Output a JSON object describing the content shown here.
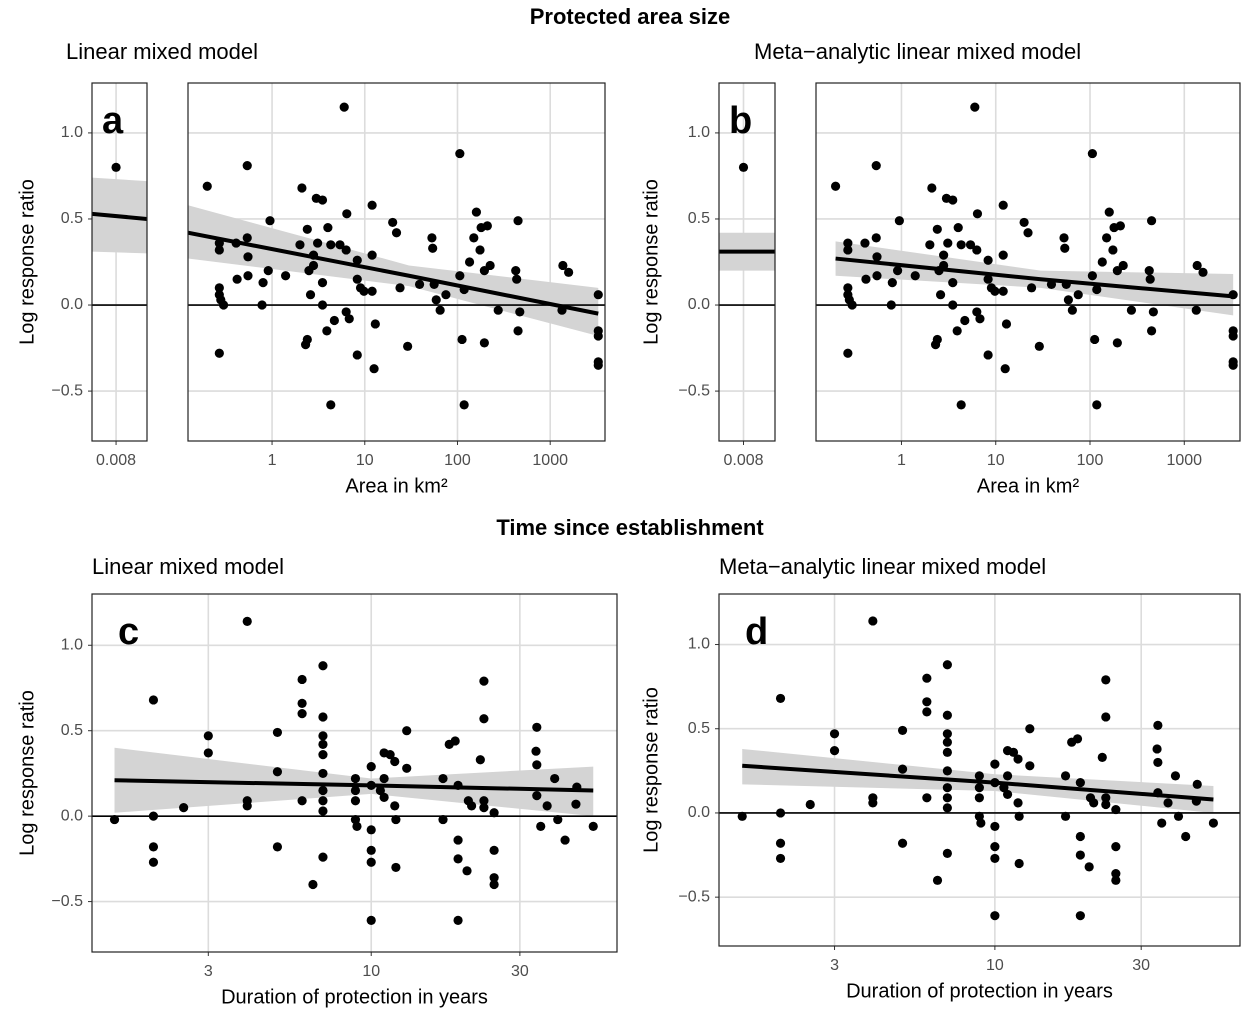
{
  "sections": [
    {
      "title": "Protected area size"
    },
    {
      "title": "Time since establishment"
    }
  ],
  "chart_data": [
    {
      "type": "scatter",
      "title": "Linear mixed model",
      "panel_label": "a",
      "ylabel": "Log response ratio",
      "color": "#000000",
      "grid": true,
      "x": [
        0.008
      ],
      "values": [
        0.8
      ],
      "xlim": [
        0.0073,
        0.0089
      ],
      "ylim": [
        -0.79,
        1.29
      ],
      "xticks": [
        0.008
      ],
      "yticks": [
        {
          "value": -0.5,
          "label": "−0.5"
        },
        {
          "value": 0,
          "label": "0.0"
        },
        0.5,
        {
          "value": 1,
          "label": "1.0"
        }
      ],
      "hline": 0,
      "fit": {
        "x": [
          0.0073,
          0.0089
        ],
        "values": [
          0.53,
          0.5
        ],
        "lower": [
          0.31,
          0.3
        ],
        "upper": [
          0.74,
          0.72
        ]
      }
    },
    {
      "type": "scatter",
      "xlabel": "Area in km²",
      "xlog": true,
      "color": "#000000",
      "grid": true,
      "x": [
        0.2,
        0.27,
        0.27,
        0.27,
        0.27,
        0.28,
        0.3,
        0.27,
        0.41,
        0.42,
        0.54,
        0.54,
        0.55,
        0.55,
        0.78,
        0.8,
        0.95,
        0.91,
        1.4,
        2,
        2.1,
        2.4,
        2.5,
        2.6,
        2.3,
        2.4,
        2.8,
        2.8,
        3,
        3.1,
        3.5,
        3.5,
        3.5,
        4,
        4.3,
        4.3,
        3.9,
        4.7,
        5.4,
        6,
        6.3,
        6.3,
        6.8,
        6.4,
        8.3,
        8.3,
        8.3,
        9,
        9.8,
        12,
        12,
        12,
        13,
        12.6,
        20,
        22,
        24,
        29,
        39,
        53,
        54,
        56,
        59,
        65,
        75,
        106,
        106,
        112,
        118,
        118,
        135,
        150,
        160,
        175,
        180,
        195,
        195,
        210,
        225,
        275,
        425,
        435,
        450,
        450,
        470,
        1370,
        1580,
        1340,
        3300,
        3300,
        3300,
        3300,
        3300
      ],
      "values": [
        0.69,
        0.36,
        0.32,
        0.1,
        0.06,
        0.03,
        0,
        -0.28,
        0.36,
        0.15,
        0.39,
        0.81,
        0.28,
        0.17,
        0,
        0.13,
        0.49,
        0.2,
        0.17,
        0.35,
        0.68,
        0.44,
        0.2,
        0.06,
        -0.23,
        -0.2,
        0.23,
        0.29,
        0.62,
        0.36,
        0.61,
        0.13,
        0,
        0.45,
        0.35,
        -0.58,
        -0.15,
        -0.09,
        0.35,
        1.15,
        0.32,
        -0.04,
        -0.08,
        0.53,
        0.26,
        -0.29,
        0.15,
        0.1,
        0.08,
        0.58,
        0.29,
        0.08,
        -0.11,
        -0.37,
        0.48,
        0.42,
        0.1,
        -0.24,
        0.12,
        0.39,
        0.33,
        0.12,
        0.03,
        -0.03,
        0.06,
        0.88,
        0.17,
        -0.2,
        0.09,
        -0.58,
        0.25,
        0.39,
        0.54,
        0.32,
        0.45,
        0.2,
        -0.22,
        0.46,
        0.23,
        -0.03,
        0.2,
        0.15,
        0.49,
        -0.15,
        -0.04,
        0.23,
        0.19,
        -0.03,
        0.06,
        -0.15,
        -0.18,
        -0.33,
        -0.35
      ],
      "xlim": [
        0.124,
        3900
      ],
      "ylim": [
        -0.79,
        1.29
      ],
      "xticks": [
        1,
        10,
        100,
        1000
      ],
      "hline": 0,
      "fit": {
        "x": [
          0.124,
          30,
          3300
        ],
        "values": [
          0.42,
          0.17,
          -0.05
        ],
        "lower": [
          0.27,
          0.11,
          -0.18
        ],
        "upper": [
          0.58,
          0.23,
          0.1
        ]
      }
    },
    {
      "type": "scatter",
      "title": "Meta−analytic linear mixed model",
      "panel_label": "b",
      "ylabel": "Log response ratio",
      "color": "#000000",
      "grid": true,
      "x": [
        0.008
      ],
      "values": [
        0.8
      ],
      "xlim": [
        0.0073,
        0.0089
      ],
      "ylim": [
        -0.79,
        1.29
      ],
      "xticks": [
        0.008
      ],
      "yticks": [
        {
          "value": -0.5,
          "label": "−0.5"
        },
        {
          "value": 0,
          "label": "0.0"
        },
        0.5,
        {
          "value": 1,
          "label": "1.0"
        }
      ],
      "hline": 0,
      "fit": {
        "x": [
          0.0073,
          0.0089
        ],
        "values": [
          0.31,
          0.31
        ],
        "lower": [
          0.2,
          0.2
        ],
        "upper": [
          0.42,
          0.42
        ]
      }
    },
    {
      "type": "scatter",
      "xlabel": "Area in km²",
      "xlog": true,
      "color": "#000000",
      "grid": true,
      "x": [
        0.2,
        0.27,
        0.27,
        0.27,
        0.27,
        0.28,
        0.3,
        0.27,
        0.41,
        0.42,
        0.54,
        0.54,
        0.55,
        0.55,
        0.78,
        0.8,
        0.95,
        0.91,
        1.4,
        2,
        2.1,
        2.4,
        2.5,
        2.6,
        2.3,
        2.4,
        2.8,
        2.8,
        3,
        3.1,
        3.5,
        3.5,
        3.5,
        4,
        4.3,
        4.3,
        3.9,
        4.7,
        5.4,
        6,
        6.3,
        6.3,
        6.8,
        6.4,
        8.3,
        8.3,
        8.3,
        9,
        9.8,
        12,
        12,
        12,
        13,
        12.6,
        20,
        22,
        24,
        29,
        39,
        53,
        54,
        56,
        59,
        65,
        75,
        106,
        106,
        112,
        118,
        118,
        135,
        150,
        160,
        175,
        180,
        195,
        195,
        210,
        225,
        275,
        425,
        435,
        450,
        450,
        470,
        1370,
        1580,
        1340,
        3300,
        3300,
        3300,
        3300,
        3300
      ],
      "values": [
        0.69,
        0.36,
        0.32,
        0.1,
        0.06,
        0.03,
        0,
        -0.28,
        0.36,
        0.15,
        0.39,
        0.81,
        0.28,
        0.17,
        0,
        0.13,
        0.49,
        0.2,
        0.17,
        0.35,
        0.68,
        0.44,
        0.2,
        0.06,
        -0.23,
        -0.2,
        0.23,
        0.29,
        0.62,
        0.36,
        0.61,
        0.13,
        0,
        0.45,
        0.35,
        -0.58,
        -0.15,
        -0.09,
        0.35,
        1.15,
        0.32,
        -0.04,
        -0.08,
        0.53,
        0.26,
        -0.29,
        0.15,
        0.1,
        0.08,
        0.58,
        0.29,
        0.08,
        -0.11,
        -0.37,
        0.48,
        0.42,
        0.1,
        -0.24,
        0.12,
        0.39,
        0.33,
        0.12,
        0.03,
        -0.03,
        0.06,
        0.88,
        0.17,
        -0.2,
        0.09,
        -0.58,
        0.25,
        0.39,
        0.54,
        0.32,
        0.45,
        0.2,
        -0.22,
        0.46,
        0.23,
        -0.03,
        0.2,
        0.15,
        0.49,
        -0.15,
        -0.04,
        0.23,
        0.19,
        -0.03,
        0.06,
        -0.15,
        -0.18,
        -0.33,
        -0.35
      ],
      "xlim": [
        0.124,
        3900
      ],
      "ylim": [
        -0.79,
        1.29
      ],
      "xticks": [
        1,
        10,
        100,
        1000
      ],
      "hline": 0,
      "fit": {
        "x": [
          0.2,
          30,
          3300
        ],
        "values": [
          0.27,
          0.15,
          0.05
        ],
        "lower": [
          0.17,
          0.1,
          -0.06
        ],
        "upper": [
          0.37,
          0.2,
          0.18
        ]
      }
    },
    {
      "type": "scatter",
      "title": "Linear mixed model",
      "panel_label": "c",
      "ylabel": "Log response ratio",
      "xlabel": "Duration of protection in years",
      "xlog": true,
      "color": "#000000",
      "grid": true,
      "x": [
        1.5,
        2,
        2,
        2,
        2,
        2.5,
        3,
        3,
        4,
        4,
        4,
        5,
        5,
        5,
        6,
        6,
        6,
        6,
        6.5,
        7,
        7,
        7,
        7,
        7,
        7,
        7,
        7,
        7,
        7,
        8.9,
        8.9,
        8.9,
        8.9,
        9,
        10,
        10,
        10,
        10,
        10,
        10,
        10.7,
        11,
        11,
        11,
        11.5,
        11.9,
        11.9,
        12,
        12,
        13,
        13,
        17,
        17,
        17.8,
        18.6,
        19,
        19,
        19,
        19,
        20.3,
        20.5,
        21,
        22.4,
        23,
        23,
        23,
        23,
        24.8,
        24.8,
        24.8,
        24.8,
        34,
        33.8,
        34,
        34,
        35,
        36.7,
        38.8,
        39.7,
        41.9,
        45.4,
        45.7,
        51.6
      ],
      "values": [
        -0.02,
        0.68,
        0,
        -0.18,
        -0.27,
        0.05,
        0.47,
        0.37,
        1.14,
        0.09,
        0.06,
        0.49,
        0.26,
        -0.18,
        0.8,
        0.66,
        0.6,
        0.09,
        -0.4,
        0.88,
        0.58,
        0.47,
        0.42,
        0.36,
        0.25,
        0.09,
        0.03,
        -0.24,
        0.15,
        0.22,
        0.15,
        0.09,
        -0.02,
        -0.06,
        0.29,
        0.18,
        -0.08,
        -0.2,
        -0.27,
        -0.61,
        0.15,
        0.22,
        0.37,
        0.11,
        0.36,
        0.32,
        0.06,
        -0.02,
        -0.3,
        0.5,
        0.28,
        0.22,
        -0.02,
        0.42,
        0.44,
        0.18,
        -0.14,
        -0.25,
        -0.61,
        -0.32,
        0.09,
        0.06,
        0.33,
        0.79,
        0.57,
        0.09,
        0.05,
        -0.2,
        -0.36,
        -0.4,
        0.02,
        0.52,
        0.38,
        0.3,
        0.12,
        -0.06,
        0.06,
        0.22,
        -0.02,
        -0.14,
        0.07,
        0.17,
        -0.06
      ],
      "xlim": [
        1.27,
        61.5
      ],
      "ylim": [
        -0.795,
        1.3
      ],
      "xticks": [
        3,
        10,
        30
      ],
      "yticks": [
        {
          "value": -0.5,
          "label": "−0.5"
        },
        {
          "value": 0,
          "label": "0.0"
        },
        0.5,
        {
          "value": 1,
          "label": "1.0"
        }
      ],
      "hline": 0,
      "fit": {
        "x": [
          1.5,
          10,
          51.6
        ],
        "values": [
          0.21,
          0.18,
          0.15
        ],
        "lower": [
          0.02,
          0.13,
          0
        ],
        "upper": [
          0.4,
          0.22,
          0.29
        ]
      }
    },
    {
      "type": "scatter",
      "title": "Meta−analytic linear mixed model",
      "panel_label": "d",
      "ylabel": "Log response ratio",
      "xlabel": "Duration of protection in years",
      "xlog": true,
      "color": "#000000",
      "grid": true,
      "x": [
        1.5,
        2,
        2,
        2,
        2,
        2.5,
        3,
        3,
        4,
        4,
        4,
        5,
        5,
        5,
        6,
        6,
        6,
        6,
        6.5,
        7,
        7,
        7,
        7,
        7,
        7,
        7,
        7,
        7,
        7,
        8.9,
        8.9,
        8.9,
        8.9,
        9,
        10,
        10,
        10,
        10,
        10,
        10,
        10.7,
        11,
        11,
        11,
        11.5,
        11.9,
        11.9,
        12,
        12,
        13,
        13,
        17,
        17,
        17.8,
        18.6,
        19,
        19,
        19,
        19,
        20.3,
        20.5,
        21,
        22.4,
        23,
        23,
        23,
        23,
        24.8,
        24.8,
        24.8,
        24.8,
        34,
        33.8,
        34,
        34,
        35,
        36.7,
        38.8,
        39.7,
        41.9,
        45.4,
        45.7,
        51.6
      ],
      "values": [
        -0.02,
        0.68,
        0,
        -0.18,
        -0.27,
        0.05,
        0.47,
        0.37,
        1.14,
        0.09,
        0.06,
        0.49,
        0.26,
        -0.18,
        0.8,
        0.66,
        0.6,
        0.09,
        -0.4,
        0.88,
        0.58,
        0.47,
        0.42,
        0.36,
        0.25,
        0.09,
        0.03,
        -0.24,
        0.15,
        0.22,
        0.15,
        0.09,
        -0.02,
        -0.06,
        0.29,
        0.18,
        -0.08,
        -0.2,
        -0.27,
        -0.61,
        0.15,
        0.22,
        0.37,
        0.11,
        0.36,
        0.32,
        0.06,
        -0.02,
        -0.3,
        0.5,
        0.28,
        0.22,
        -0.02,
        0.42,
        0.44,
        0.18,
        -0.14,
        -0.25,
        -0.61,
        -0.32,
        0.09,
        0.06,
        0.33,
        0.79,
        0.57,
        0.09,
        0.05,
        -0.2,
        -0.36,
        -0.4,
        0.02,
        0.52,
        0.38,
        0.3,
        0.12,
        -0.06,
        0.06,
        0.22,
        -0.02,
        -0.14,
        0.07,
        0.17,
        -0.06
      ],
      "xlim": [
        1.26,
        63
      ],
      "ylim": [
        -0.79,
        1.3
      ],
      "xticks": [
        3,
        10,
        30
      ],
      "yticks": [
        {
          "value": -0.5,
          "label": "−0.5"
        },
        {
          "value": 0,
          "label": "0.0"
        },
        0.5,
        {
          "value": 1,
          "label": "1.0"
        }
      ],
      "hline": 0,
      "fit": {
        "x": [
          1.5,
          10,
          51.6
        ],
        "values": [
          0.28,
          0.18,
          0.08
        ],
        "lower": [
          0.17,
          0.13,
          0
        ],
        "upper": [
          0.38,
          0.23,
          0.16
        ]
      }
    }
  ]
}
